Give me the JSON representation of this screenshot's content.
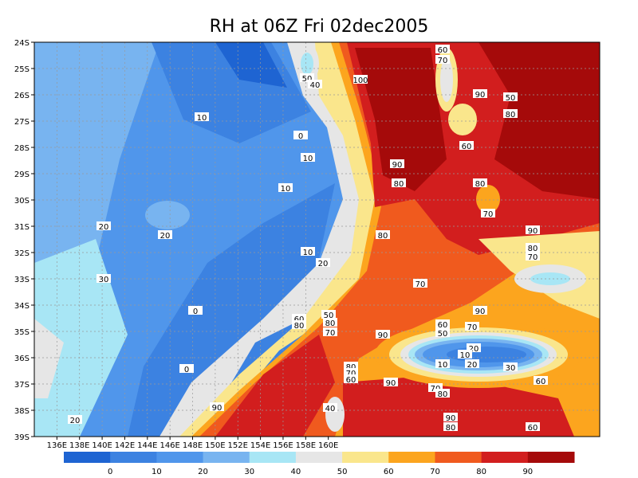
{
  "title": "RH at 06Z Fri 02dec2005",
  "map": {
    "lon_labels": [
      "136E",
      "138E",
      "140E",
      "142E",
      "144E",
      "146E",
      "148E",
      "150E",
      "152E",
      "154E",
      "156E",
      "158E",
      "160E"
    ],
    "lat_labels": [
      "24S",
      "25S",
      "26S",
      "27S",
      "28S",
      "29S",
      "30S",
      "31S",
      "32S",
      "33S",
      "34S",
      "35S",
      "36S",
      "37S",
      "38S",
      "39S"
    ],
    "contour_labels": [
      "60",
      "70",
      "50",
      "40",
      "100",
      "90",
      "50",
      "80",
      "10",
      "0",
      "60",
      "10",
      "90",
      "80",
      "80",
      "10",
      "70",
      "20",
      "20",
      "80",
      "90",
      "80",
      "10",
      "20",
      "70",
      "30",
      "70",
      "0",
      "50",
      "90",
      "60",
      "80",
      "80",
      "70",
      "90",
      "60",
      "50",
      "70",
      "20",
      "10",
      "10",
      "20",
      "30",
      "80",
      "70",
      "60",
      "0",
      "90",
      "70",
      "80",
      "60",
      "90",
      "40",
      "90",
      "80",
      "60",
      "20"
    ]
  },
  "colorbar": {
    "labels": [
      0,
      10,
      20,
      30,
      40,
      50,
      60,
      70,
      80,
      90
    ],
    "colors": [
      "#1e64d2",
      "#3c82e1",
      "#5096eb",
      "#78b4f0",
      "#a8e6f5",
      "#e6e6e6",
      "#fae68c",
      "#fca51e",
      "#f05a1e",
      "#d21e1e",
      "#a50a0a"
    ]
  }
}
